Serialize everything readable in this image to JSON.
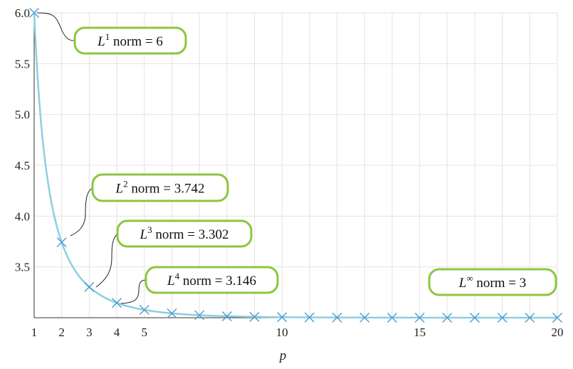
{
  "chart_data": {
    "type": "line",
    "xlabel": "p",
    "ylabel": "",
    "xlim": [
      1,
      20
    ],
    "ylim": [
      3.0,
      6.0
    ],
    "x_ticks": [
      1,
      2,
      3,
      4,
      5,
      10,
      15,
      20
    ],
    "x_tick_labels": [
      "1",
      "2",
      "3",
      "4",
      "5",
      "10",
      "15",
      "20"
    ],
    "y_ticks": [
      3.5,
      4.0,
      4.5,
      5.0,
      5.5,
      6.0
    ],
    "y_tick_labels": [
      "3.5",
      "4.0",
      "4.5",
      "5.0",
      "5.5",
      "6.0"
    ],
    "grid": true,
    "curve_color": "#8ccfe0",
    "marker_color": "#4a9ccf",
    "callout_border_color": "#8cc63f",
    "series": [
      {
        "x": [
          1,
          2,
          3,
          4,
          5,
          6,
          7,
          8,
          9,
          10,
          11,
          12,
          13,
          14,
          15,
          16,
          17,
          18,
          19,
          20
        ],
        "y": [
          6.0,
          3.742,
          3.302,
          3.146,
          3.077,
          3.043,
          3.025,
          3.014,
          3.008,
          3.005,
          3.003,
          3.002,
          3.001,
          3.0,
          3.0,
          3.0,
          3.0,
          3.0,
          3.0,
          3.0
        ],
        "marker": "x"
      }
    ],
    "annotations": [
      {
        "id": "l1",
        "sup": "1",
        "text": "norm = 6",
        "x": 1,
        "y": 6.0
      },
      {
        "id": "l2",
        "sup": "2",
        "text": "norm = 3.742",
        "x": 2,
        "y": 3.742
      },
      {
        "id": "l3",
        "sup": "3",
        "text": "norm = 3.302",
        "x": 3,
        "y": 3.302
      },
      {
        "id": "l4",
        "sup": "4",
        "text": "norm = 3.146",
        "x": 4,
        "y": 3.146
      },
      {
        "id": "linf",
        "sup": "∞",
        "text": "norm = 3",
        "x": null,
        "y": 3.0
      }
    ]
  }
}
